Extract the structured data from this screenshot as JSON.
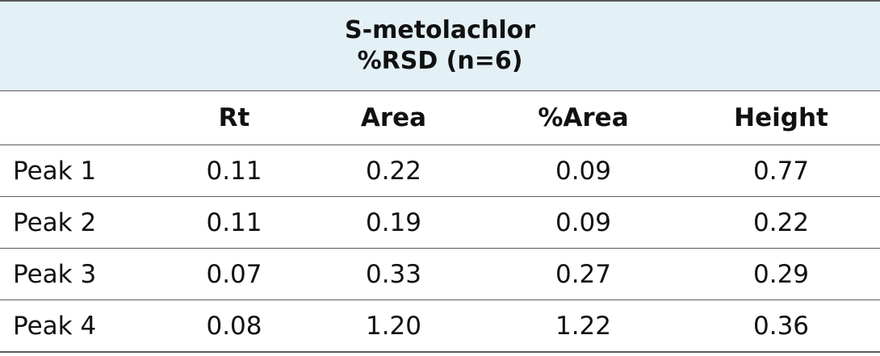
{
  "chart_data": {
    "type": "table",
    "title": "S-metolachlor",
    "subtitle": "%RSD (n=6)",
    "columns": [
      "",
      "Rt",
      "Area",
      "%Area",
      "Height"
    ],
    "rows": [
      {
        "label": "Peak 1",
        "values": [
          "0.11",
          "0.22",
          "0.09",
          "0.77"
        ]
      },
      {
        "label": "Peak 2",
        "values": [
          "0.11",
          "0.19",
          "0.09",
          "0.22"
        ]
      },
      {
        "label": "Peak 3",
        "values": [
          "0.07",
          "0.33",
          "0.27",
          "0.29"
        ]
      },
      {
        "label": "Peak 4",
        "values": [
          "0.08",
          "1.20",
          "1.22",
          "0.36"
        ]
      }
    ],
    "header_background": "#e3f0f5",
    "rule_color": "#5a5a5a"
  }
}
